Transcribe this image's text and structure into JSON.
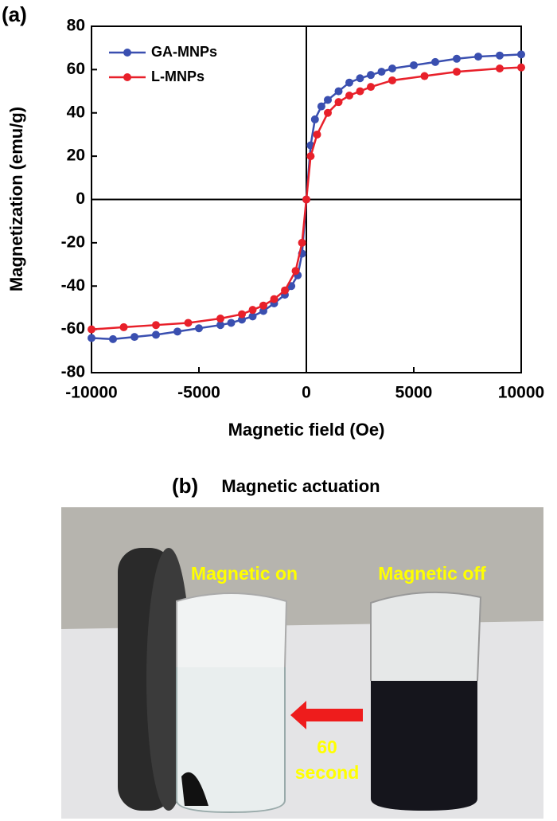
{
  "chart_data": {
    "type": "line",
    "xlabel": "Magnetic field (Oe)",
    "ylabel": "Magnetization (emu/g)",
    "xlim": [
      -10000,
      10000
    ],
    "ylim": [
      -80,
      80
    ],
    "xticks": [
      -10000,
      -5000,
      0,
      5000,
      10000
    ],
    "yticks": [
      -80,
      -60,
      -40,
      -20,
      0,
      20,
      40,
      60,
      80
    ],
    "legend": "upper left",
    "series": [
      {
        "name": "GA-MNPs",
        "color": "#3a4fb0",
        "x": [
          -10000,
          -9000,
          -8000,
          -7000,
          -6000,
          -5000,
          -4000,
          -3500,
          -3000,
          -2500,
          -2000,
          -1500,
          -1000,
          -700,
          -400,
          -200,
          0,
          200,
          400,
          700,
          1000,
          1500,
          2000,
          2500,
          3000,
          3500,
          4000,
          5000,
          6000,
          7000,
          8000,
          9000,
          10000
        ],
        "values": [
          -64,
          -64.5,
          -63.5,
          -62.5,
          -61,
          -59.5,
          -58,
          -57,
          -55.5,
          -54,
          -51.5,
          -48,
          -44,
          -40,
          -35,
          -25,
          0,
          25,
          37,
          43,
          46,
          50,
          54,
          56,
          57.5,
          59,
          60.5,
          62,
          63.5,
          65,
          66,
          66.5,
          67
        ]
      },
      {
        "name": "L-MNPs",
        "color": "#e8202a",
        "x": [
          -10000,
          -8500,
          -7000,
          -5500,
          -4000,
          -3000,
          -2500,
          -2000,
          -1500,
          -1000,
          -500,
          -200,
          0,
          200,
          500,
          1000,
          1500,
          2000,
          2500,
          3000,
          4000,
          5500,
          7000,
          9000,
          10000
        ],
        "values": [
          -60,
          -59,
          -58,
          -57,
          -55,
          -53,
          -51,
          -49,
          -46,
          -42,
          -33,
          -20,
          0,
          20,
          30,
          40,
          45,
          48,
          50,
          52,
          55,
          57,
          59,
          60.5,
          61
        ]
      }
    ]
  },
  "labels": {
    "panel_a": "(a)",
    "panel_b": "(b)",
    "photo_title": "Magnetic actuation"
  },
  "photo": {
    "left": "Magnetic on",
    "right": "Magnetic off",
    "time_value": "60",
    "time_unit": "second"
  }
}
